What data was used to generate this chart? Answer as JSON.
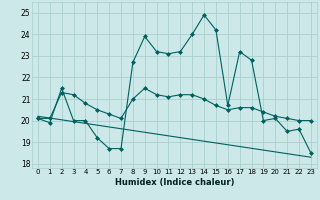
{
  "xlabel": "Humidex (Indice chaleur)",
  "background_color": "#cce8e8",
  "grid_color": "#aacfcf",
  "line_color": "#006060",
  "xlim": [
    -0.5,
    23.5
  ],
  "ylim": [
    17.8,
    25.5
  ],
  "yticks": [
    18,
    19,
    20,
    21,
    22,
    23,
    24,
    25
  ],
  "xticks": [
    0,
    1,
    2,
    3,
    4,
    5,
    6,
    7,
    8,
    9,
    10,
    11,
    12,
    13,
    14,
    15,
    16,
    17,
    18,
    19,
    20,
    21,
    22,
    23
  ],
  "xtick_labels": [
    "0",
    "1",
    "2",
    "3",
    "4",
    "5",
    "6",
    "7",
    "8",
    "9",
    "10",
    "11",
    "12",
    "13",
    "14",
    "15",
    "16",
    "17",
    "18",
    "19",
    "20",
    "21",
    "22",
    "23"
  ],
  "series1_x": [
    0,
    1,
    2,
    3,
    4,
    5,
    6,
    7,
    8,
    9,
    10,
    11,
    12,
    13,
    14,
    15,
    16,
    17,
    18,
    19,
    20,
    21,
    22,
    23
  ],
  "series1_y": [
    20.1,
    19.9,
    21.5,
    20.0,
    20.0,
    19.2,
    18.7,
    18.7,
    22.7,
    23.9,
    23.2,
    23.1,
    23.2,
    24.0,
    24.9,
    24.2,
    20.7,
    23.2,
    22.8,
    20.0,
    20.1,
    19.5,
    19.6,
    18.5
  ],
  "series2_x": [
    0,
    1,
    2,
    3,
    4,
    5,
    6,
    7,
    8,
    9,
    10,
    11,
    12,
    13,
    14,
    15,
    16,
    17,
    18,
    19,
    20,
    21,
    22,
    23
  ],
  "series2_y": [
    20.1,
    20.1,
    21.3,
    21.2,
    20.8,
    20.5,
    20.3,
    20.1,
    21.0,
    21.5,
    21.2,
    21.1,
    21.2,
    21.2,
    21.0,
    20.7,
    20.5,
    20.6,
    20.6,
    20.4,
    20.2,
    20.1,
    20.0,
    20.0
  ],
  "series3_x": [
    0,
    23
  ],
  "series3_y": [
    20.2,
    18.3
  ]
}
